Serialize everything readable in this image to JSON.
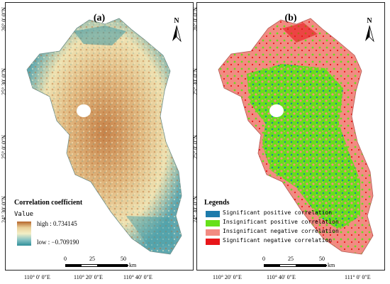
{
  "panel_a": {
    "label": "(a)",
    "north": "N",
    "legend_title": "Correlation coefficient",
    "legend_sub": "Value",
    "high_label": "high : 0.734145",
    "low_label": "low : −0.709190",
    "ramp_colors": [
      "#b5642a",
      "#e9cf98",
      "#f3efc6",
      "#8cc5c5",
      "#2f8f9a"
    ],
    "scale": {
      "t0": "0",
      "t1": "25",
      "t2": "50",
      "unit": "km"
    }
  },
  "panel_b": {
    "label": "(b)",
    "north": "N",
    "legend_title": "Legends",
    "legend_items": [
      {
        "label": "Significant positive correlation",
        "color": "#1d7bab"
      },
      {
        "label": "Insignificant positive correlation",
        "color": "#66e01a"
      },
      {
        "label": "Insignificant negative correlation",
        "color": "#f28b82"
      },
      {
        "label": "Significant negative correlation",
        "color": "#e8161a"
      }
    ],
    "scale": {
      "t0": "0",
      "t1": "25",
      "t2": "50",
      "unit": "km"
    }
  },
  "lat_labels": [
    "26° 0′ 0″N",
    "25° 30′ 0″N",
    "25° 0′ 0″N",
    "24° 30′ 0″N"
  ],
  "lon_labels": [
    "110° 0′ 0″E",
    "110° 20′ 0″E",
    "110° 40′ 0″E",
    "111° 0′ 0″E"
  ]
}
